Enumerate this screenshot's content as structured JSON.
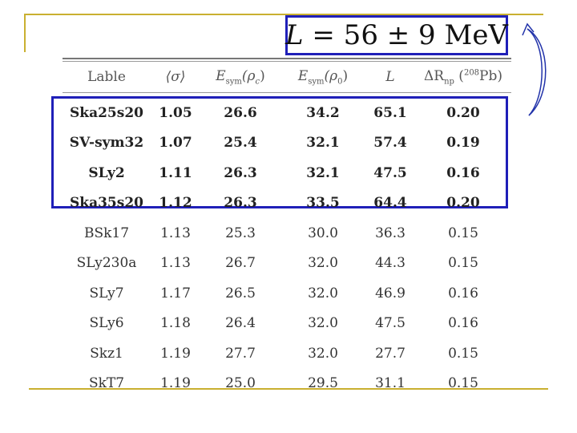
{
  "formula": {
    "lhs": "L",
    "rhs": " = 56 ± 9 ",
    "unit": "MeV"
  },
  "table": {
    "headers": {
      "label": "Lable",
      "sigma": "⟨σ⟩",
      "esym_c_base": "E",
      "esym_c_sub": "sym",
      "esym_c_arg": "(ρ",
      "esym_c_argsub": "c",
      "esym_c_close": ")",
      "esym_0_base": "E",
      "esym_0_sub": "sym",
      "esym_0_arg": "(ρ",
      "esym_0_argsub": "0",
      "esym_0_close": ")",
      "L": "L",
      "drnp_base": "ΔR",
      "drnp_sub": "np",
      "drnp_paren_open": " (",
      "drnp_sup": "208",
      "drnp_elem": "Pb)"
    },
    "rows": [
      {
        "label": "Ska25s20",
        "sigma": "1.05",
        "esym_c": "26.6",
        "esym_0": "34.2",
        "L": "65.1",
        "drnp": "0.20"
      },
      {
        "label": "SV-sym32",
        "sigma": "1.07",
        "esym_c": "25.4",
        "esym_0": "32.1",
        "L": "57.4",
        "drnp": "0.19"
      },
      {
        "label": "SLy2",
        "sigma": "1.11",
        "esym_c": "26.3",
        "esym_0": "32.1",
        "L": "47.5",
        "drnp": "0.16"
      },
      {
        "label": "Ska35s20",
        "sigma": "1.12",
        "esym_c": "26.3",
        "esym_0": "33.5",
        "L": "64.4",
        "drnp": "0.20"
      },
      {
        "label": "BSk17",
        "sigma": "1.13",
        "esym_c": "25.3",
        "esym_0": "30.0",
        "L": "36.3",
        "drnp": "0.15"
      },
      {
        "label": "SLy230a",
        "sigma": "1.13",
        "esym_c": "26.7",
        "esym_0": "32.0",
        "L": "44.3",
        "drnp": "0.15"
      },
      {
        "label": "SLy7",
        "sigma": "1.17",
        "esym_c": "26.5",
        "esym_0": "32.0",
        "L": "46.9",
        "drnp": "0.16"
      },
      {
        "label": "SLy6",
        "sigma": "1.18",
        "esym_c": "26.4",
        "esym_0": "32.0",
        "L": "47.5",
        "drnp": "0.16"
      },
      {
        "label": "Skz1",
        "sigma": "1.19",
        "esym_c": "27.7",
        "esym_0": "32.0",
        "L": "27.7",
        "drnp": "0.15"
      },
      {
        "label": "SkT7",
        "sigma": "1.19",
        "esym_c": "25.0",
        "esym_0": "29.5",
        "L": "31.1",
        "drnp": "0.15"
      }
    ]
  },
  "colors": {
    "highlight": "#1f1fb8",
    "slide_rule": "#c9b030"
  }
}
